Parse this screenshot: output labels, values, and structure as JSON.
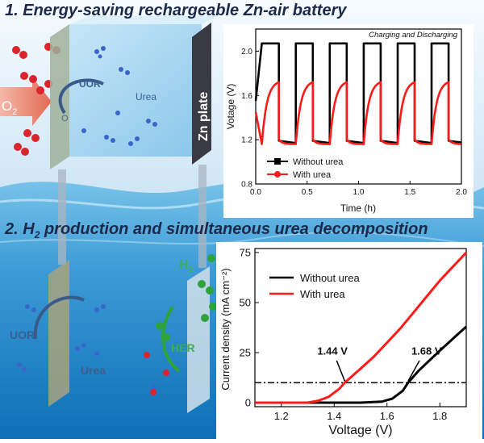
{
  "headings": {
    "top_number": "1.",
    "top_text": "Energy-saving rechargeable Zn-air battery",
    "bottom_number": "2.",
    "bottom_h": "H",
    "bottom_sub": "2",
    "bottom_text": " production and simultaneous urea decomposition"
  },
  "illustration": {
    "o2_main": "O",
    "o2_sub": "2",
    "o2_small": "O",
    "uor_top": "UOR",
    "urea_top": "Urea",
    "zn_plate": "Zn plate",
    "h2_main": "H",
    "h2_sub": "2",
    "uor_bottom": "UOR",
    "urea_bottom": "Urea",
    "her": "HER"
  },
  "colors": {
    "sky": "#e9f4fb",
    "water_top": "#5fb3e0",
    "water_bottom": "#0f70b8",
    "heading": "#1b2a4a",
    "without_urea": "#000000",
    "with_urea": "#ff1a1a",
    "zn_plate": "#3a3a44",
    "green_bubble": "#2fa33a"
  },
  "chart_data": [
    {
      "type": "line",
      "title": "Charging and Discharging",
      "xlabel": "Time (h)",
      "ylabel": "Votage (V)",
      "xlim": [
        0.0,
        2.0
      ],
      "ylim": [
        0.8,
        2.2
      ],
      "xticks": [
        "0.0",
        "0.5",
        "1.0",
        "1.5",
        "2.0"
      ],
      "yticks": [
        "0.8",
        "1.2",
        "1.6",
        "2.0"
      ],
      "legend_position": "bottom-left",
      "cycles": 6,
      "cycle_period_h": 0.33,
      "series": [
        {
          "name": "Without urea",
          "color": "#000000",
          "charge_V": 2.07,
          "discharge_V": 1.17
        },
        {
          "name": "With urea",
          "color": "#ff1a1a",
          "charge_V": 1.72,
          "discharge_V": 1.16
        }
      ]
    },
    {
      "type": "line",
      "xlabel": "Voltage (V)",
      "ylabel": "Current density (mA cm⁻²)",
      "xlim": [
        1.1,
        1.9
      ],
      "ylim": [
        -2,
        77
      ],
      "xticks": [
        "1.2",
        "1.4",
        "1.6",
        "1.8"
      ],
      "yticks": [
        "0",
        "25",
        "50",
        "75"
      ],
      "legend_position": "top-left",
      "reference_line_mA": 10,
      "annotations": [
        {
          "text": "1.44 V",
          "x": 1.44
        },
        {
          "text": "1.68 V",
          "x": 1.68
        }
      ],
      "series": [
        {
          "name": "Without urea",
          "color": "#000000",
          "x": [
            1.1,
            1.5,
            1.58,
            1.62,
            1.66,
            1.68,
            1.72,
            1.76,
            1.8,
            1.85,
            1.9
          ],
          "y": [
            0,
            0,
            0.5,
            2,
            6,
            10,
            16,
            21,
            26,
            32,
            38
          ]
        },
        {
          "name": "With urea",
          "color": "#ff1a1a",
          "x": [
            1.1,
            1.3,
            1.34,
            1.38,
            1.42,
            1.44,
            1.5,
            1.55,
            1.6,
            1.65,
            1.7,
            1.75,
            1.8,
            1.85,
            1.9
          ],
          "y": [
            0,
            0,
            1,
            3,
            7,
            10,
            17,
            23,
            30,
            37,
            45,
            53,
            61,
            68,
            75
          ]
        }
      ]
    }
  ]
}
